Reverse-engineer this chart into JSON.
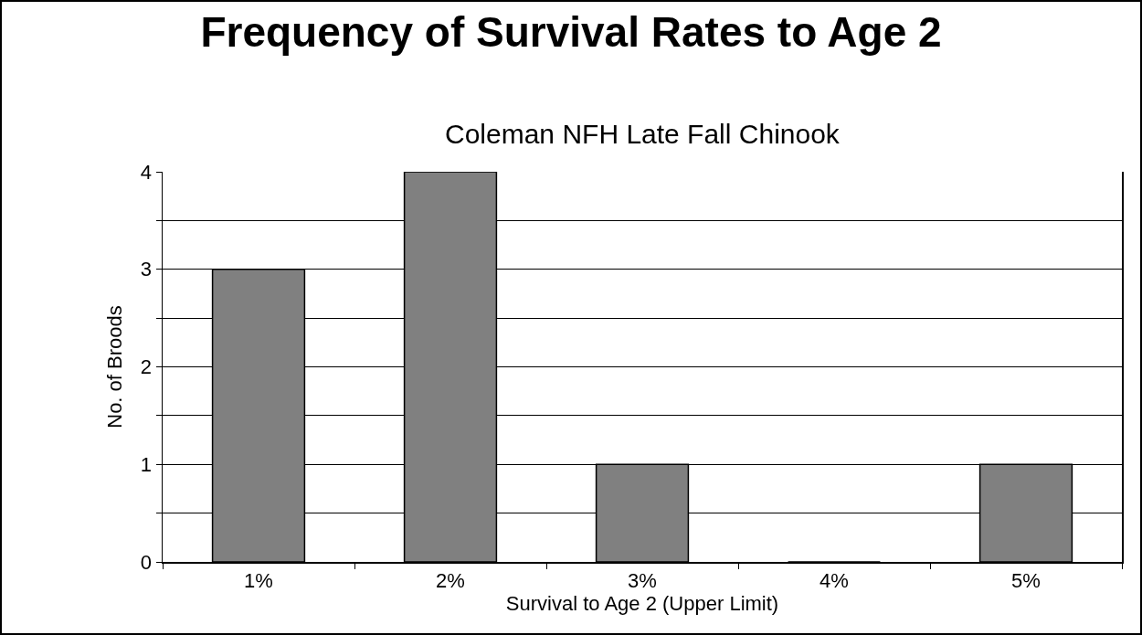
{
  "chart_data": {
    "type": "bar",
    "title": "Frequency of Survival Rates to Age 2",
    "subtitle": "Coleman NFH Late Fall Chinook",
    "xlabel": "Survival to Age 2 (Upper Limit)",
    "ylabel": "No. of Broods",
    "categories": [
      "1%",
      "2%",
      "3%",
      "4%",
      "5%"
    ],
    "values": [
      3,
      4,
      1,
      0,
      1
    ],
    "color": "#808080",
    "ylim": [
      0,
      4
    ],
    "yticks": [
      0,
      {
        "value": 0.5,
        "label": null
      },
      1,
      {
        "value": 1.5,
        "label": null
      },
      2,
      {
        "value": 2.5,
        "label": null
      },
      3,
      {
        "value": 3.5,
        "label": null
      },
      4
    ],
    "grid": "y"
  }
}
